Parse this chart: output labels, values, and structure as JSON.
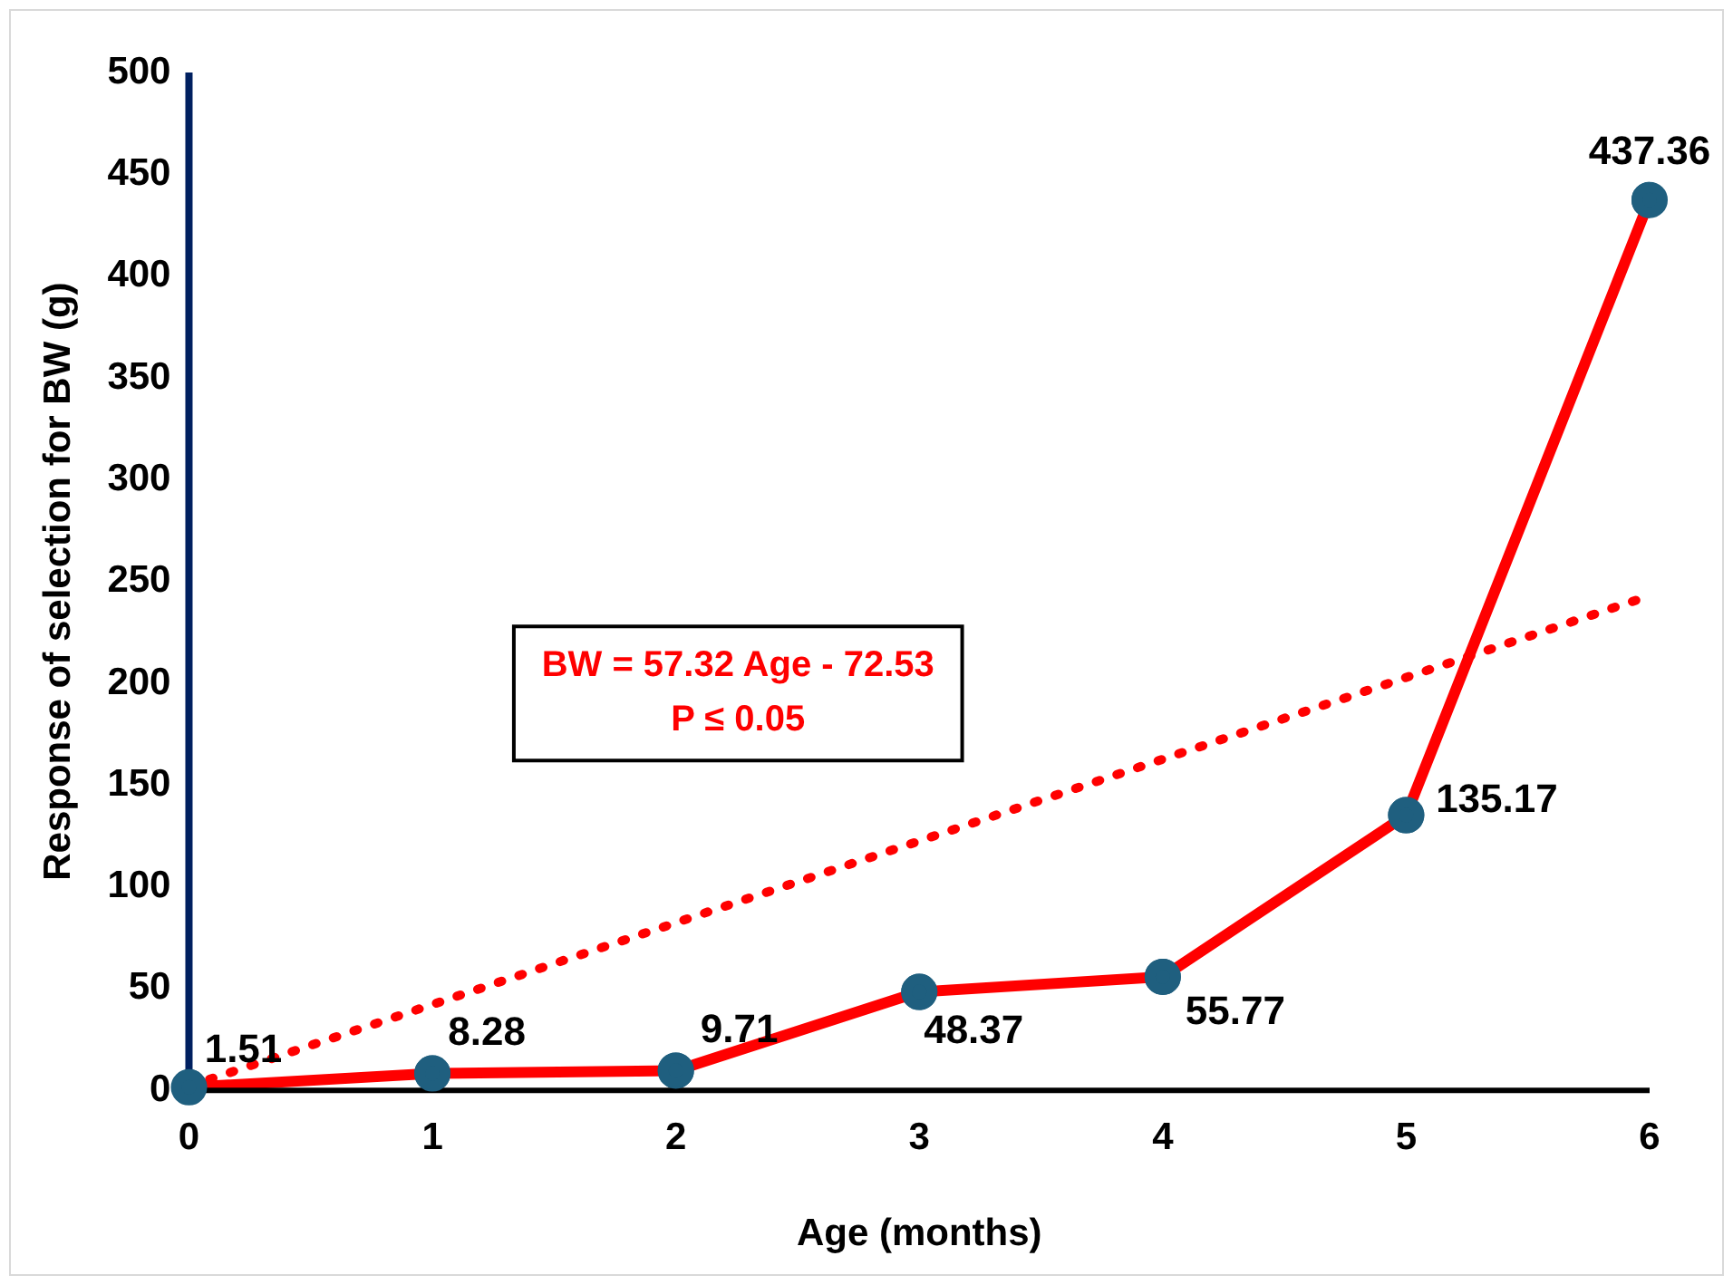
{
  "chart_data": {
    "type": "line",
    "xlabel": "Age (months)",
    "ylabel": "Response of selection for BW (g)",
    "xlim": [
      0,
      6
    ],
    "xticks": [
      0,
      1,
      2,
      3,
      4,
      5,
      6
    ],
    "ylim": [
      0,
      500
    ],
    "yticks": [
      0,
      50,
      100,
      150,
      200,
      250,
      300,
      350,
      400,
      450,
      500
    ],
    "grid": false,
    "legend": false,
    "series": [
      {
        "type": "line",
        "color": "#ff0000",
        "marker": "circle",
        "line_style": "solid",
        "x": [
          0,
          1,
          2,
          3,
          4,
          5,
          6
        ],
        "values": [
          1.51,
          8.28,
          9.71,
          48.37,
          55.77,
          135.17,
          437.36
        ],
        "value_labels": [
          "1.51",
          "8.28",
          "9.71",
          "48.37",
          "55.77",
          "135.17",
          "437.36"
        ]
      },
      {
        "type": "line",
        "color": "#ff0000",
        "line_style": "dotted",
        "x": [
          0,
          6
        ],
        "values": [
          2,
          243
        ]
      }
    ],
    "annotations": [
      "BW = 57.32 Age - 72.53",
      "P ≤ 0.05"
    ]
  }
}
